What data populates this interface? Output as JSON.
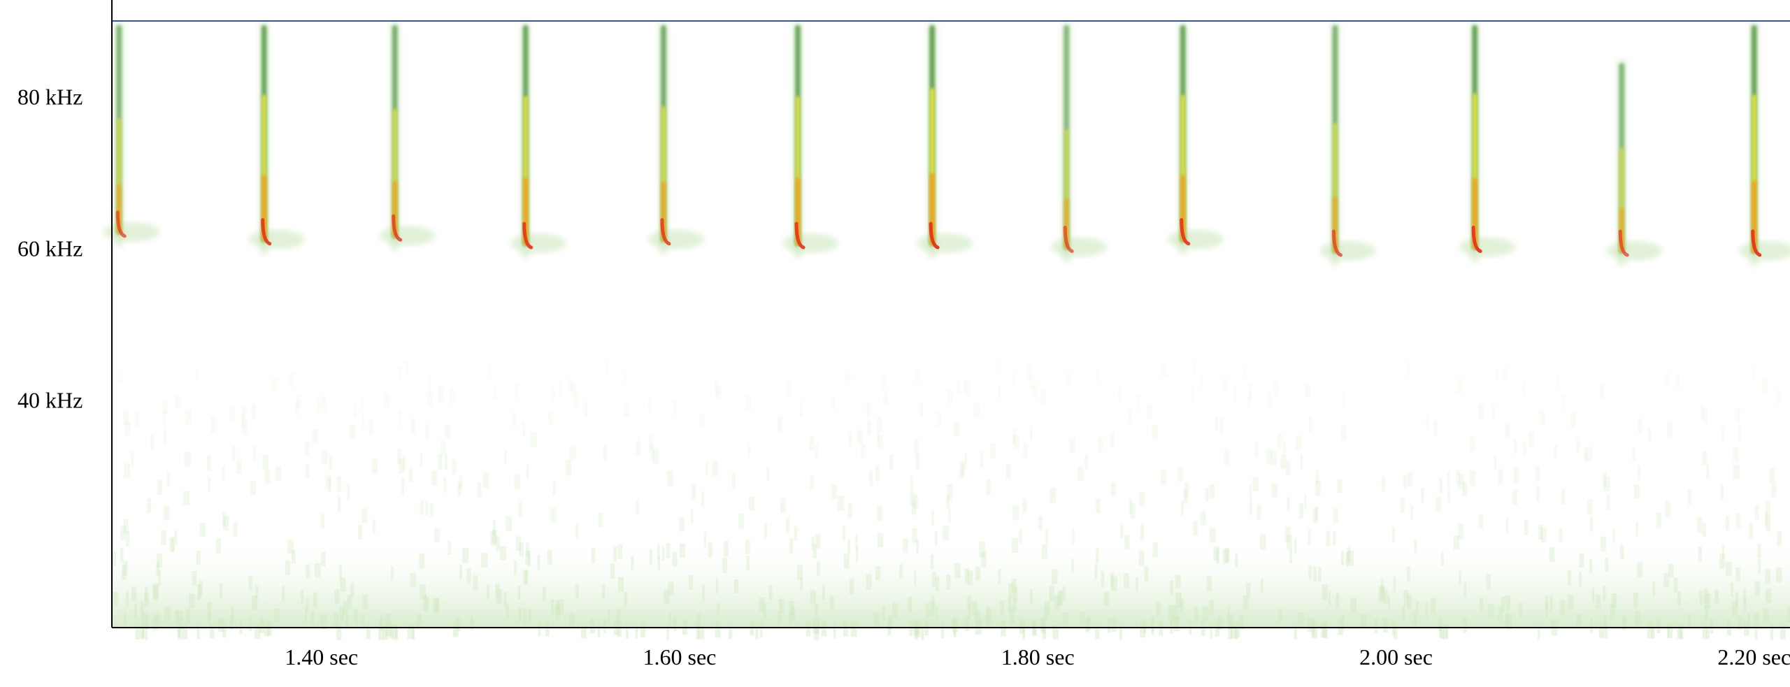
{
  "chart_data": {
    "type": "spectrogram",
    "title": "",
    "xlabel": "",
    "ylabel": "",
    "xlim": [
      1.283,
      2.22
    ],
    "ylim": [
      10,
      90
    ],
    "grid": false,
    "legend": "none",
    "x_ticks": [
      {
        "value": 1.4,
        "label": "1.40 sec"
      },
      {
        "value": 1.6,
        "label": "1.60 sec"
      },
      {
        "value": 1.8,
        "label": "1.80 sec"
      },
      {
        "value": 2.0,
        "label": "2.00 sec"
      },
      {
        "value": 2.2,
        "label": "2.20 sec"
      }
    ],
    "y_ticks": [
      {
        "value": 80,
        "label": "80 kHz"
      },
      {
        "value": 60,
        "label": "60 kHz"
      },
      {
        "value": 40,
        "label": "40 kHz"
      }
    ],
    "reference_line_khz": 90,
    "pulses": [
      {
        "t": 1.287,
        "f_start": 90,
        "f_end": 62,
        "intensity": 0.55
      },
      {
        "t": 1.368,
        "f_start": 90,
        "f_end": 61,
        "intensity": 0.9
      },
      {
        "t": 1.441,
        "f_start": 90,
        "f_end": 61.5,
        "intensity": 0.7
      },
      {
        "t": 1.514,
        "f_start": 90,
        "f_end": 60.5,
        "intensity": 0.9
      },
      {
        "t": 1.591,
        "f_start": 90,
        "f_end": 61,
        "intensity": 0.75
      },
      {
        "t": 1.666,
        "f_start": 90,
        "f_end": 60.5,
        "intensity": 0.9
      },
      {
        "t": 1.741,
        "f_start": 90,
        "f_end": 60.5,
        "intensity": 1.0
      },
      {
        "t": 1.816,
        "f_start": 90,
        "f_end": 60,
        "intensity": 0.5
      },
      {
        "t": 1.881,
        "f_start": 90,
        "f_end": 61,
        "intensity": 0.9
      },
      {
        "t": 1.966,
        "f_start": 90,
        "f_end": 59.5,
        "intensity": 0.6
      },
      {
        "t": 2.044,
        "f_start": 90,
        "f_end": 60,
        "intensity": 0.95
      },
      {
        "t": 2.126,
        "f_start": 85,
        "f_end": 59.5,
        "intensity": 0.55
      },
      {
        "t": 2.2,
        "f_start": 90,
        "f_end": 59.5,
        "intensity": 0.95
      }
    ],
    "colors": {
      "faint": "#cfe8bf",
      "mid": "#3e8a2e",
      "yellow": "#f1ec3a",
      "orange": "#f39a1d",
      "red": "#e5381f",
      "axis": "#000000",
      "reference_line": "#3a4fb8"
    }
  }
}
